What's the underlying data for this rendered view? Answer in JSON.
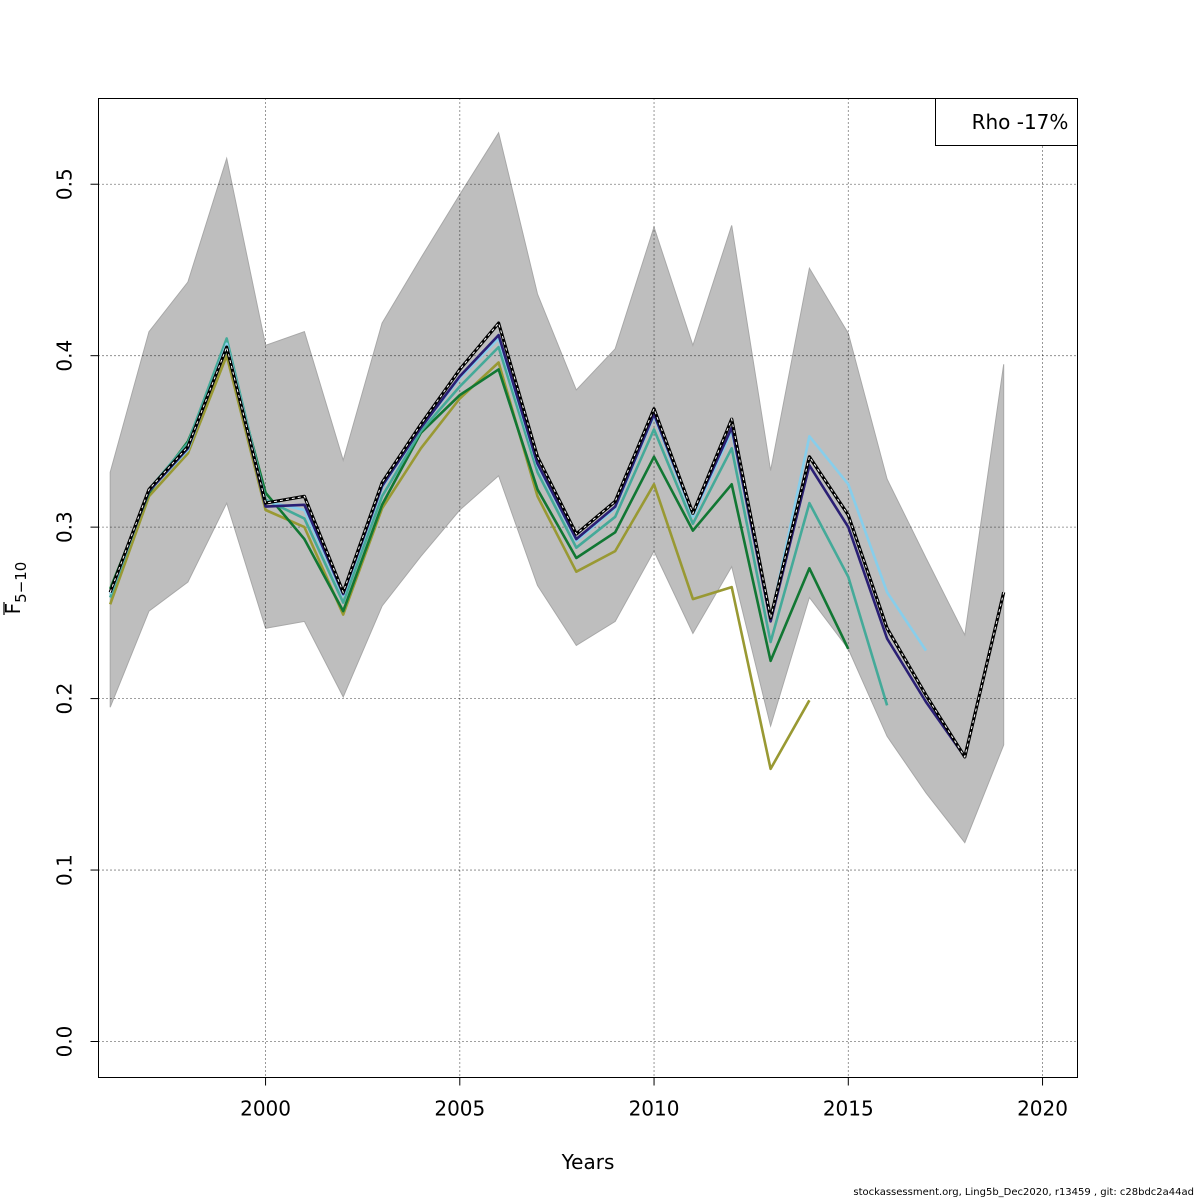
{
  "chart_data": {
    "type": "line",
    "title": "",
    "xlabel": "Years",
    "ylabel_main": "F",
    "ylabel_sub": "5−10",
    "xlim": [
      1995.7,
      2020.9
    ],
    "ylim": [
      -0.021,
      0.55
    ],
    "xticks": [
      2000,
      2005,
      2010,
      2015,
      2020
    ],
    "xtick_labels": [
      "2000",
      "2005",
      "2010",
      "2015",
      "2020"
    ],
    "yticks": [
      0.0,
      0.1,
      0.2,
      0.3,
      0.4,
      0.5
    ],
    "ytick_labels": [
      "0.0",
      "0.1",
      "0.2",
      "0.3",
      "0.4",
      "0.5"
    ],
    "grid": true,
    "legend_text": "Rho -17%",
    "legend_position": "top-right",
    "confidence_band": {
      "color": "#bebebe",
      "x": [
        1996,
        1997,
        1998,
        1999,
        2000,
        2001,
        2002,
        2003,
        2004,
        2005,
        2006,
        2007,
        2008,
        2009,
        2010,
        2011,
        2012,
        2013,
        2014,
        2015,
        2016,
        2017,
        2018,
        2019
      ],
      "upper": [
        0.332,
        0.414,
        0.443,
        0.515,
        0.406,
        0.414,
        0.339,
        0.419,
        0.457,
        0.494,
        0.53,
        0.436,
        0.38,
        0.404,
        0.475,
        0.406,
        0.476,
        0.333,
        0.451,
        0.413,
        0.328,
        0.282,
        0.237,
        0.395
      ],
      "lower": [
        0.195,
        0.251,
        0.268,
        0.314,
        0.241,
        0.245,
        0.201,
        0.254,
        0.283,
        0.31,
        0.33,
        0.266,
        0.231,
        0.245,
        0.286,
        0.238,
        0.277,
        0.184,
        0.259,
        0.229,
        0.178,
        0.145,
        0.116,
        0.173
      ]
    },
    "series": [
      {
        "color": "#000000",
        "dashed_overlay": true,
        "width": 3.2,
        "x": [
          1996,
          1997,
          1998,
          1999,
          2000,
          2001,
          2002,
          2003,
          2004,
          2005,
          2006,
          2007,
          2008,
          2009,
          2010,
          2011,
          2012,
          2013,
          2014,
          2015,
          2016,
          2017,
          2018,
          2019
        ],
        "values": [
          0.262,
          0.322,
          0.347,
          0.405,
          0.314,
          0.318,
          0.262,
          0.326,
          0.36,
          0.392,
          0.419,
          0.341,
          0.296,
          0.315,
          0.369,
          0.308,
          0.363,
          0.247,
          0.341,
          0.307,
          0.241,
          0.202,
          0.166,
          0.262
        ]
      },
      {
        "color": "#2a1f74",
        "width": 2.6,
        "x": [
          1996,
          1997,
          1998,
          1999,
          2000,
          2001,
          2002,
          2003,
          2004,
          2005,
          2006,
          2007,
          2008,
          2009,
          2010,
          2011,
          2012,
          2013,
          2014,
          2015,
          2016,
          2017,
          2018
        ],
        "values": [
          0.262,
          0.321,
          0.346,
          0.405,
          0.312,
          0.313,
          0.261,
          0.324,
          0.358,
          0.388,
          0.412,
          0.337,
          0.293,
          0.312,
          0.366,
          0.308,
          0.358,
          0.245,
          0.336,
          0.3,
          0.235,
          0.198,
          0.166
        ]
      },
      {
        "color": "#87ceeb",
        "width": 2.6,
        "x": [
          1996,
          1997,
          1998,
          1999,
          2000,
          2001,
          2002,
          2003,
          2004,
          2005,
          2006,
          2007,
          2008,
          2009,
          2010,
          2011,
          2012,
          2013,
          2014,
          2015,
          2016,
          2017
        ],
        "values": [
          0.261,
          0.321,
          0.345,
          0.407,
          0.315,
          0.31,
          0.26,
          0.323,
          0.358,
          0.387,
          0.41,
          0.336,
          0.292,
          0.311,
          0.365,
          0.306,
          0.356,
          0.246,
          0.353,
          0.325,
          0.262,
          0.228
        ]
      },
      {
        "color": "#44aa99",
        "width": 2.6,
        "x": [
          1996,
          1997,
          1998,
          1999,
          2000,
          2001,
          2002,
          2003,
          2004,
          2005,
          2006,
          2007,
          2008,
          2009,
          2010,
          2011,
          2012,
          2013,
          2014,
          2015,
          2016
        ],
        "values": [
          0.259,
          0.322,
          0.349,
          0.41,
          0.316,
          0.305,
          0.256,
          0.318,
          0.356,
          0.382,
          0.405,
          0.332,
          0.288,
          0.306,
          0.357,
          0.302,
          0.346,
          0.233,
          0.314,
          0.271,
          0.196
        ]
      },
      {
        "color": "#117733",
        "width": 2.6,
        "x": [
          1996,
          1997,
          1998,
          1999,
          2000,
          2001,
          2002,
          2003,
          2004,
          2005,
          2006,
          2007,
          2008,
          2009,
          2010,
          2011,
          2012,
          2013,
          2014,
          2015
        ],
        "values": [
          0.264,
          0.32,
          0.35,
          0.404,
          0.32,
          0.293,
          0.251,
          0.313,
          0.355,
          0.377,
          0.392,
          0.322,
          0.282,
          0.297,
          0.341,
          0.298,
          0.325,
          0.222,
          0.276,
          0.229
        ]
      },
      {
        "color": "#999933",
        "width": 2.6,
        "x": [
          1996,
          1997,
          1998,
          1999,
          2000,
          2001,
          2002,
          2003,
          2004,
          2005,
          2006,
          2007,
          2008,
          2009,
          2010,
          2011,
          2012,
          2013,
          2014
        ],
        "values": [
          0.255,
          0.318,
          0.343,
          0.4,
          0.31,
          0.3,
          0.249,
          0.311,
          0.346,
          0.375,
          0.396,
          0.318,
          0.274,
          0.286,
          0.325,
          0.258,
          0.265,
          0.159,
          0.199
        ]
      }
    ]
  },
  "footer": {
    "text": "stockassessment.org, Ling5b_Dec2020, r13459 , git: c28bdc2a44ad"
  }
}
